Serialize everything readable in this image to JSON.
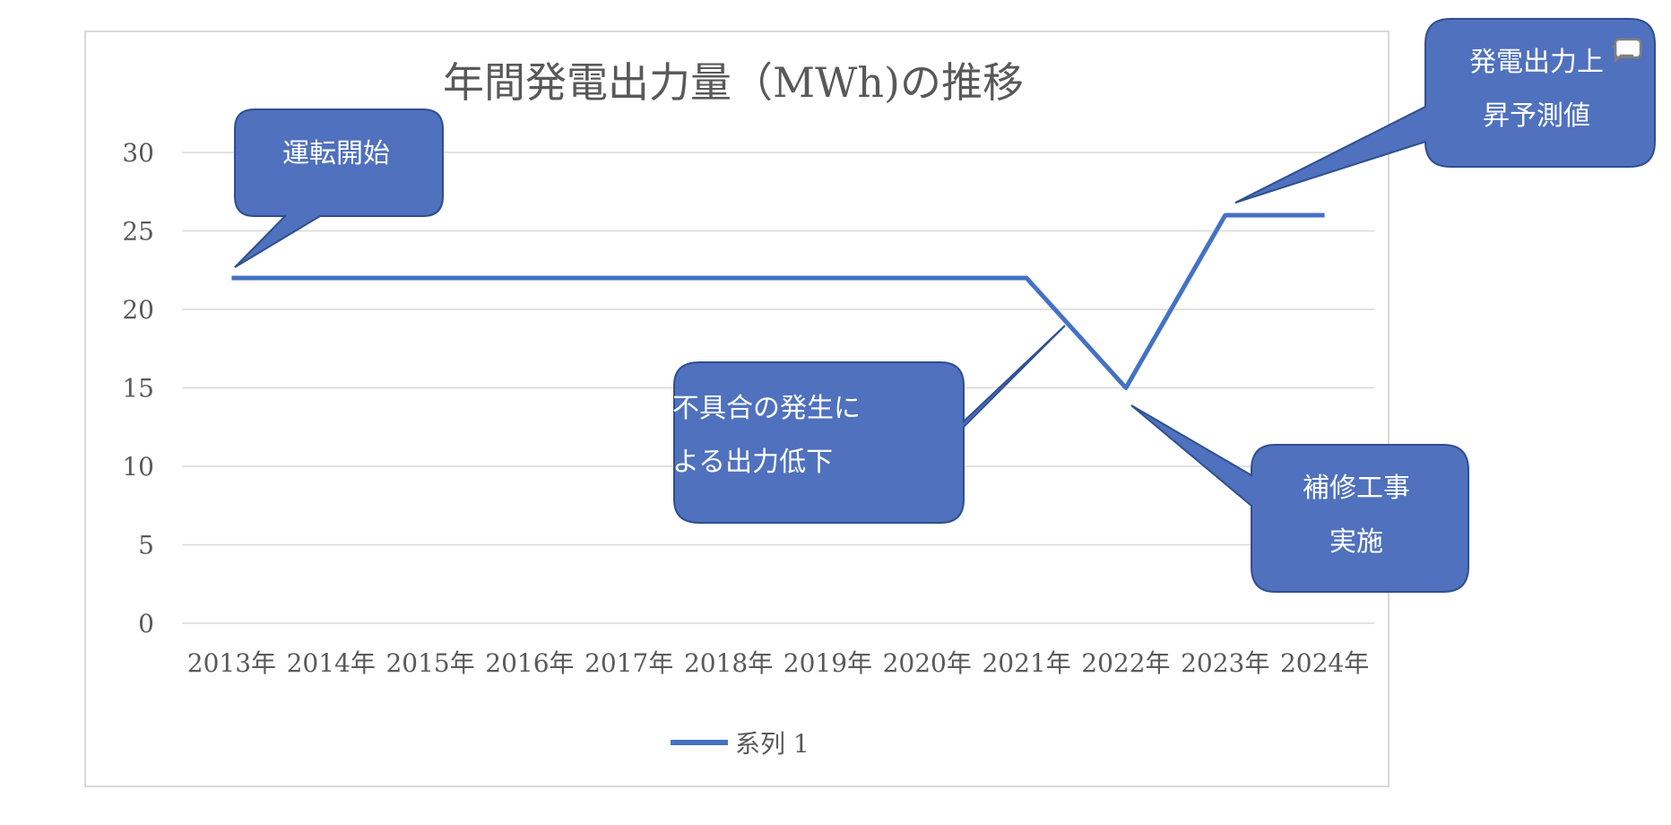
{
  "chart_data": {
    "type": "line",
    "title": "年間発電出力量（MWh)の推移",
    "categories": [
      "2013年",
      "2014年",
      "2015年",
      "2016年",
      "2017年",
      "2018年",
      "2019年",
      "2020年",
      "2021年",
      "2022年",
      "2023年",
      "2024年"
    ],
    "series": [
      {
        "name": "系列 1",
        "values": [
          22,
          22,
          22,
          22,
          22,
          22,
          22,
          22,
          22,
          15,
          26,
          26
        ]
      }
    ],
    "ylim": [
      0,
      30
    ],
    "yticks": [
      0,
      5,
      10,
      15,
      20,
      25,
      30
    ],
    "grid": true,
    "legend_position": "bottom",
    "colors": {
      "series": "#4472C4",
      "callout_fill": "#4F71BE",
      "callout_border": "#2F4F8F",
      "grid": "#D9D9D9",
      "text": "#595959"
    },
    "annotations": [
      {
        "lines": [
          "運転開始"
        ],
        "category": "2013年"
      },
      {
        "lines": [
          "不具合の発生に",
          "よる出力低下"
        ],
        "category": "2021年"
      },
      {
        "lines": [
          "補修工事",
          "実施"
        ],
        "category": "2022年"
      },
      {
        "lines": [
          "発電出力上",
          "昇予測値"
        ],
        "category": "2023年"
      }
    ]
  }
}
